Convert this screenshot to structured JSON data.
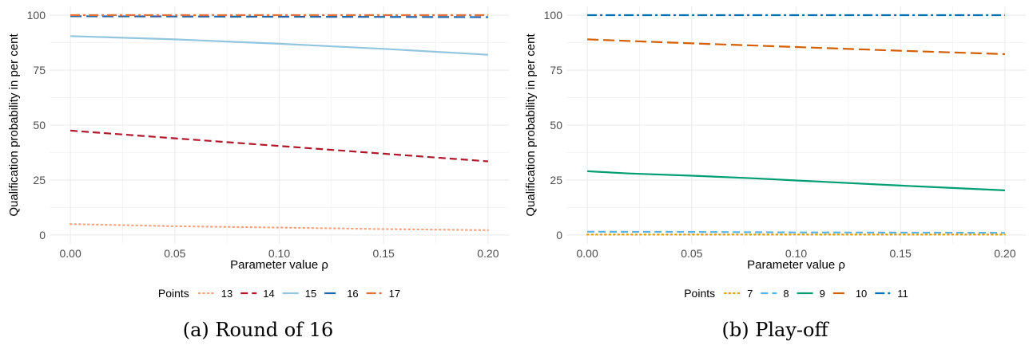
{
  "chart_data": [
    {
      "type": "line",
      "caption": "(a) Round of 16",
      "xlabel": "Parameter value  ρ",
      "ylabel": "Qualification probability in per cent",
      "xlim": [
        -0.01,
        0.21
      ],
      "ylim": [
        -4,
        104
      ],
      "x_ticks": [
        "0.00",
        "0.05",
        "0.10",
        "0.15",
        "0.20"
      ],
      "y_ticks": [
        "0",
        "25",
        "50",
        "75",
        "100"
      ],
      "legend_title": "Points",
      "legend_position": "bottom",
      "series": [
        {
          "name": "13",
          "color": "#f4a582",
          "dash": "dotted",
          "x": [
            0,
            0.05,
            0.1,
            0.15,
            0.2
          ],
          "y": [
            5,
            4,
            3.4,
            2.7,
            2.2
          ]
        },
        {
          "name": "14",
          "color": "#b2182b",
          "dash": "dashed",
          "x": [
            0,
            0.05,
            0.1,
            0.15,
            0.2
          ],
          "y": [
            47.5,
            44,
            40.5,
            37,
            33.5
          ]
        },
        {
          "name": "15",
          "color": "#92c5de",
          "dash": "solid",
          "x": [
            0,
            0.05,
            0.1,
            0.15,
            0.2
          ],
          "y": [
            90.5,
            89,
            87,
            84.7,
            82
          ]
        },
        {
          "name": "16",
          "color": "#2166ac",
          "dash": "longdash",
          "x": [
            0,
            0.05,
            0.1,
            0.15,
            0.2
          ],
          "y": [
            99.5,
            99.4,
            99.3,
            99.2,
            99.1
          ]
        },
        {
          "name": "17",
          "color": "#e0703a",
          "dash": "twodash",
          "x": [
            0,
            0.05,
            0.1,
            0.15,
            0.2
          ],
          "y": [
            100,
            100,
            100,
            100,
            100
          ]
        }
      ]
    },
    {
      "type": "line",
      "caption": "(b) Play-off",
      "xlabel": "Parameter value  ρ",
      "ylabel": "Qualification probability in per cent",
      "xlim": [
        -0.01,
        0.21
      ],
      "ylim": [
        -4,
        104
      ],
      "x_ticks": [
        "0.00",
        "0.05",
        "0.10",
        "0.15",
        "0.20"
      ],
      "y_ticks": [
        "0",
        "25",
        "50",
        "75",
        "100"
      ],
      "legend_title": "Points",
      "legend_position": "bottom",
      "series": [
        {
          "name": "7",
          "color": "#e69f00",
          "dash": "dotted",
          "x": [
            0,
            0.05,
            0.1,
            0.15,
            0.2
          ],
          "y": [
            0.2,
            0.2,
            0.2,
            0.2,
            0.2
          ]
        },
        {
          "name": "8",
          "color": "#56b4e9",
          "dash": "dashed",
          "x": [
            0,
            0.05,
            0.1,
            0.15,
            0.2
          ],
          "y": [
            1.5,
            1.4,
            1.2,
            1.1,
            1.0
          ]
        },
        {
          "name": "9",
          "color": "#009e73",
          "dash": "solid",
          "x": [
            0,
            0.02,
            0.05,
            0.08,
            0.1,
            0.15,
            0.2
          ],
          "y": [
            29,
            28,
            27,
            25.8,
            24.8,
            22.5,
            20.3
          ]
        },
        {
          "name": "10",
          "color": "#d55e00",
          "dash": "longdash",
          "x": [
            0,
            0.05,
            0.1,
            0.15,
            0.2
          ],
          "y": [
            89,
            87.2,
            85.5,
            83.8,
            82.3
          ]
        },
        {
          "name": "11",
          "color": "#0072b2",
          "dash": "twodash",
          "x": [
            0,
            0.05,
            0.1,
            0.15,
            0.2
          ],
          "y": [
            100,
            100,
            100,
            100,
            100
          ]
        }
      ]
    }
  ]
}
